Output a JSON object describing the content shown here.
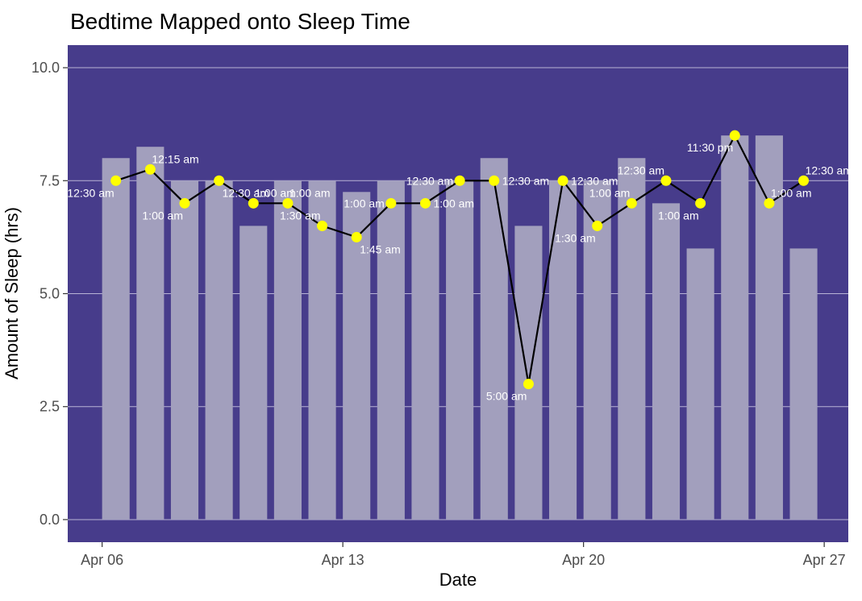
{
  "chart_data": {
    "type": "bar",
    "title": "Bedtime Mapped onto Sleep Time",
    "xlabel": "Date",
    "ylabel": "Amount of Sleep (hrs)",
    "ylim": [
      -0.5,
      10.5
    ],
    "yticks": [
      0.0,
      2.5,
      5.0,
      7.5,
      10.0
    ],
    "ytick_labels": [
      "0.0",
      "2.5",
      "5.0",
      "7.5",
      "10.0"
    ],
    "xticks": [
      6,
      13,
      20,
      27
    ],
    "xtick_labels": [
      "Apr 06",
      "Apr 13",
      "Apr 20",
      "Apr 27"
    ],
    "x_unit": "day of April",
    "grid": true,
    "colors": {
      "panel": "#473C8B",
      "bar": "#A29FBD",
      "point": "#FFFF00",
      "line": "#000000",
      "label": "#FFFFFF",
      "grid": "#B9B4D6"
    },
    "bars": {
      "name": "Amount of Sleep",
      "x": [
        6.4,
        7.4,
        8.4,
        9.4,
        10.4,
        11.4,
        12.4,
        13.4,
        14.4,
        15.4,
        16.4,
        17.4,
        18.4,
        19.4,
        20.4,
        21.4,
        22.4,
        23.4,
        24.4,
        25.4,
        26.4
      ],
      "values": [
        8.0,
        8.25,
        7.5,
        7.5,
        6.5,
        7.5,
        7.5,
        7.25,
        7.5,
        7.5,
        7.5,
        8.0,
        6.5,
        7.5,
        7.5,
        8.0,
        7.0,
        6.0,
        8.5,
        8.5,
        6.0
      ]
    },
    "bedtime": {
      "name": "Bedtime",
      "x": [
        6.4,
        7.4,
        8.4,
        9.4,
        10.4,
        11.4,
        12.4,
        13.4,
        14.4,
        15.4,
        16.4,
        17.4,
        18.4,
        19.4,
        20.4,
        21.4,
        22.4,
        23.4,
        24.4,
        25.4,
        26.4
      ],
      "values": [
        7.5,
        7.75,
        7.0,
        7.5,
        7.0,
        7.0,
        6.5,
        6.25,
        7.0,
        7.0,
        7.5,
        7.5,
        3.0,
        7.5,
        6.5,
        7.0,
        7.5,
        7.0,
        8.5,
        7.0,
        7.5
      ],
      "labels": [
        "12:30 am",
        "12:15 am",
        "1:00 am",
        "12:30 am",
        "1:00 am",
        "1:00 am",
        "1:30 am",
        "1:45 am",
        "1:00 am",
        "1:00 am",
        "12:30 am",
        "12:30 am",
        "5:00 am",
        "12:30 am",
        "1:30 am",
        "1:00 am",
        "12:30 am",
        "1:00 am",
        "11:30 pm",
        "1:00 am",
        "12:30 am"
      ],
      "label_pos": [
        "bl",
        "tr",
        "bl",
        "br",
        "tr",
        "tr",
        "tl",
        "br",
        "l",
        "r",
        "l",
        "r",
        "bl",
        "r",
        "bl",
        "tl",
        "tl",
        "bl",
        "bl",
        "tr",
        "tr"
      ]
    }
  }
}
